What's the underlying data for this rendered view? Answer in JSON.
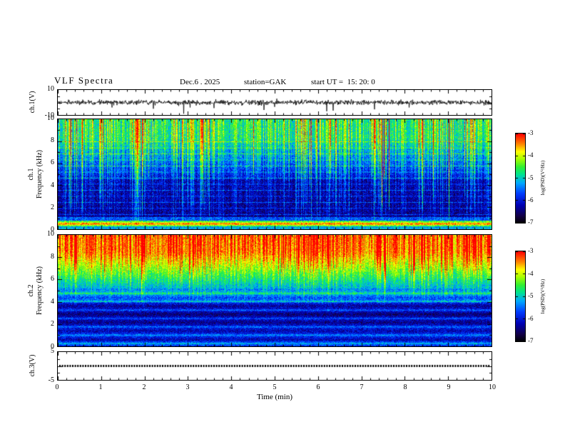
{
  "header": {
    "title": "VLF Spectra",
    "date": "Dec.6 . 2025",
    "station": "station=GAK",
    "start_ut": "start UT =  15: 20: 0"
  },
  "xaxis": {
    "label": "Time (min)",
    "range": [
      0,
      10
    ],
    "ticks": [
      0,
      1,
      2,
      3,
      4,
      5,
      6,
      7,
      8,
      9,
      10
    ]
  },
  "colorbar": {
    "label": "log(PSD)(V²/Hz)",
    "ticks": [
      -3,
      -4,
      -5,
      -6,
      -7
    ],
    "range": [
      -7,
      -3
    ]
  },
  "chart_data": [
    {
      "type": "line",
      "name": "ch1_waveform",
      "ylabel": "ch.1(V)",
      "ylim": [
        -10,
        10
      ],
      "ytick_labels": [
        10,
        -10
      ],
      "xlim": [
        0,
        10
      ],
      "description": "broadband noise around 0 V (about ±1.5 V) with sporadic impulsive negative spikes",
      "spikes": [
        [
          1.25,
          -4
        ],
        [
          2.2,
          -5
        ],
        [
          2.9,
          -9
        ],
        [
          3.05,
          -4
        ],
        [
          3.6,
          -4.5
        ],
        [
          4.75,
          -6
        ],
        [
          5.0,
          -3.5
        ],
        [
          5.05,
          3
        ],
        [
          6.2,
          -7
        ],
        [
          6.35,
          -6.5
        ],
        [
          7.3,
          -5.5
        ],
        [
          8.1,
          -4
        ]
      ]
    },
    {
      "type": "heatmap",
      "name": "ch1_spectrogram",
      "ylabel_lines": [
        "ch.1",
        "Frequency (kHz)"
      ],
      "ylim": [
        0,
        10
      ],
      "yticks": [
        0,
        2,
        4,
        6,
        8,
        10
      ],
      "zlabel": "log(PSD)(V²/Hz)",
      "zlim": [
        -7,
        -3
      ],
      "description": "green/yellow sferic activity above ~7 kHz, dark blue-black 2-7 kHz crossed by dense vertical sferic streaks, faint horizontal harmonic lines, bright red-orange band near 0.5 kHz and mixed colors at the very bottom"
    },
    {
      "type": "heatmap",
      "name": "ch2_spectrogram",
      "ylabel_lines": [
        "ch.2",
        "Frequency (kHz)"
      ],
      "ylim": [
        0,
        10
      ],
      "yticks": [
        0,
        2,
        4,
        6,
        8,
        10
      ],
      "zlabel": "log(PSD)(V²/Hz)",
      "zlim": [
        -7,
        -3
      ],
      "description": "intense red-orange band 7-10 kHz with vertical red streaks reaching down, green 5-7 kHz, blue below 5 kHz with horizontal cyan banding"
    },
    {
      "type": "line",
      "name": "ch3_waveform",
      "ylabel": "ch.3(V)",
      "ylim": [
        -5,
        5
      ],
      "ytick_labels": [
        5,
        -5
      ],
      "value": 0,
      "description": "constant 0 V thick dotted trace across the full panel"
    }
  ]
}
